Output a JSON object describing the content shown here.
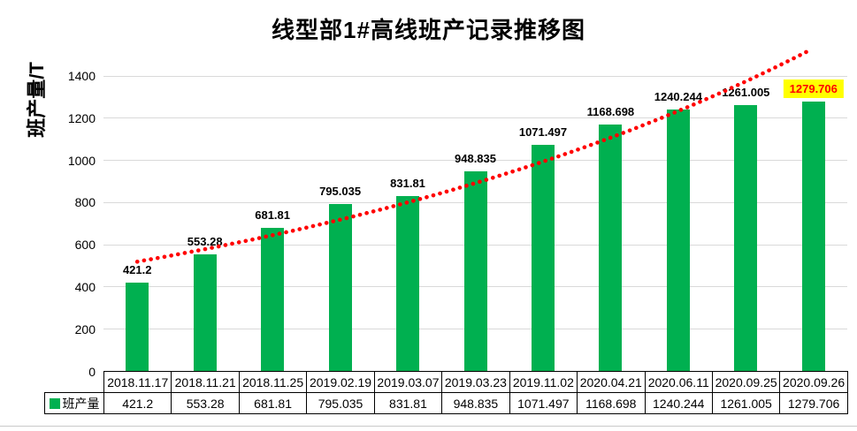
{
  "title": "线型部1#高线班产记录推移图",
  "y_axis": {
    "label": "班产量/T",
    "ticks": [
      0,
      200,
      400,
      600,
      800,
      1000,
      1200,
      1400
    ],
    "max": 1400
  },
  "legend": {
    "label": "班产量"
  },
  "colors": {
    "bar": "#00B050",
    "trendline": "#FF0000",
    "gridline": "#D9D9D9",
    "highlight_bg": "#FFFF00",
    "highlight_text": "#FF0000",
    "text": "#000000",
    "table_border": "#000000"
  },
  "chart_data": {
    "type": "bar",
    "title": "线型部1#高线班产记录推移图",
    "xlabel": "",
    "ylabel": "班产量/T",
    "ylim": [
      0,
      1400
    ],
    "yticks": [
      0,
      200,
      400,
      600,
      800,
      1000,
      1200,
      1400
    ],
    "grid": true,
    "legend_position": "bottom data table",
    "categories": [
      "2018.11.17",
      "2018.11.21",
      "2018.11.25",
      "2019.02.19",
      "2019.03.07",
      "2019.03.23",
      "2019.11.02",
      "2020.04.21",
      "2020.06.11",
      "2020.09.25",
      "2020.09.26"
    ],
    "series": [
      {
        "name": "班产量",
        "values": [
          421.2,
          553.28,
          681.81,
          795.035,
          831.81,
          948.835,
          1071.497,
          1168.698,
          1240.244,
          1261.005,
          1279.706
        ]
      }
    ],
    "data_labels": true,
    "highlighted_index": 10,
    "trendline": {
      "type": "exponential",
      "style": "dotted",
      "color": "#FF0000",
      "start_value": 520,
      "growth_per_category": 0.108
    }
  }
}
